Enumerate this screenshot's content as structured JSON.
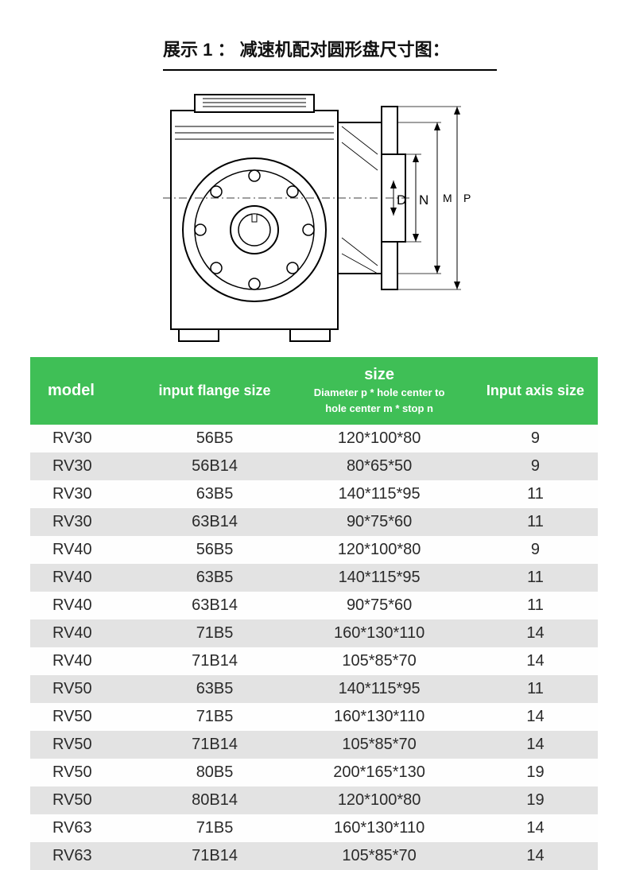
{
  "title": "展示 1 ： 减速机配对圆形盘尺寸图：",
  "diagram": {
    "labels": {
      "D": "D",
      "N": "N",
      "M": "M",
      "P": "P"
    },
    "stroke": "#000000",
    "fill": "#ffffff"
  },
  "table": {
    "header_bg": "#3fbf56",
    "header_fg": "#ffffff",
    "row_alt_bg": "#e3e3e3",
    "row_bg": "#fefefe",
    "columns": {
      "model": "model",
      "flange": "input flange size",
      "size_main": "size",
      "size_sub1": "Diameter p * hole center to",
      "size_sub2": "hole center m * stop n",
      "axis": "Input axis size"
    },
    "rows": [
      {
        "model": "RV30",
        "flange": "56B5",
        "size": "120*100*80",
        "axis": "9"
      },
      {
        "model": "RV30",
        "flange": "56B14",
        "size": "80*65*50",
        "axis": "9"
      },
      {
        "model": "RV30",
        "flange": "63B5",
        "size": "140*115*95",
        "axis": "11"
      },
      {
        "model": "RV30",
        "flange": "63B14",
        "size": "90*75*60",
        "axis": "11"
      },
      {
        "model": "RV40",
        "flange": "56B5",
        "size": "120*100*80",
        "axis": "9"
      },
      {
        "model": "RV40",
        "flange": "63B5",
        "size": "140*115*95",
        "axis": "11"
      },
      {
        "model": "RV40",
        "flange": "63B14",
        "size": "90*75*60",
        "axis": "11"
      },
      {
        "model": "RV40",
        "flange": "71B5",
        "size": "160*130*110",
        "axis": "14"
      },
      {
        "model": "RV40",
        "flange": "71B14",
        "size": "105*85*70",
        "axis": "14"
      },
      {
        "model": "RV50",
        "flange": "63B5",
        "size": "140*115*95",
        "axis": "11"
      },
      {
        "model": "RV50",
        "flange": "71B5",
        "size": "160*130*110",
        "axis": "14"
      },
      {
        "model": "RV50",
        "flange": "71B14",
        "size": "105*85*70",
        "axis": "14"
      },
      {
        "model": "RV50",
        "flange": "80B5",
        "size": "200*165*130",
        "axis": "19"
      },
      {
        "model": "RV50",
        "flange": "80B14",
        "size": "120*100*80",
        "axis": "19"
      },
      {
        "model": "RV63",
        "flange": "71B5",
        "size": "160*130*110",
        "axis": "14"
      },
      {
        "model": "RV63",
        "flange": "71B14",
        "size": "105*85*70",
        "axis": "14"
      }
    ]
  }
}
